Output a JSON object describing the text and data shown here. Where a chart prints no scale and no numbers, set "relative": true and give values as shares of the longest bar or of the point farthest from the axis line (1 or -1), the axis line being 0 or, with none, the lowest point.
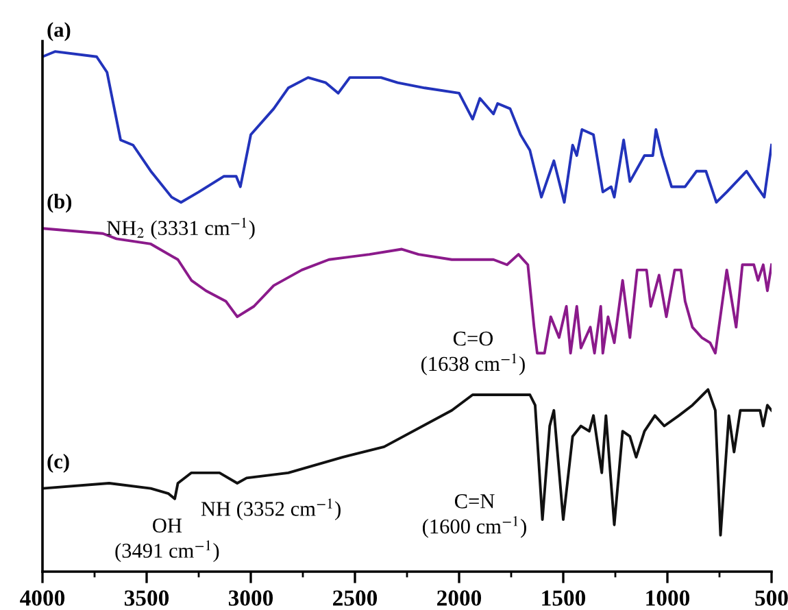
{
  "chart_data": {
    "type": "line",
    "relative": true,
    "xlim": [
      4000,
      500
    ],
    "xticks": [
      4000,
      {
        "value": 3750,
        "label": null
      },
      3500,
      {
        "value": 3250,
        "label": null
      },
      3000,
      {
        "value": 2750,
        "label": null
      },
      2500,
      {
        "value": 2250,
        "label": null
      },
      2000,
      {
        "value": 1750,
        "label": null
      },
      1500,
      {
        "value": 1250,
        "label": null
      },
      1000,
      {
        "value": 750,
        "label": null
      },
      500
    ],
    "tick_labels": "x",
    "grid": false,
    "legend": false,
    "marker": "none",
    "line_style": "solid",
    "series": [
      {
        "name": "(a)",
        "color": "#2233bb",
        "x": [
          4000,
          3940,
          3740,
          3690,
          3625,
          3565,
          3480,
          3380,
          3335,
          3250,
          3130,
          3070,
          3050,
          3000,
          2890,
          2820,
          2725,
          2640,
          2580,
          2525,
          2375,
          2295,
          2165,
          2000,
          1935,
          1900,
          1835,
          1815,
          1755,
          1705,
          1660,
          1605,
          1545,
          1495,
          1455,
          1435,
          1410,
          1355,
          1310,
          1270,
          1255,
          1210,
          1180,
          1110,
          1070,
          1055,
          1025,
          980,
          915,
          860,
          815,
          765,
          715,
          620,
          570,
          535,
          500
        ],
        "values": [
          0.99,
          1.0,
          0.99,
          0.96,
          0.83,
          0.82,
          0.77,
          0.72,
          0.71,
          0.73,
          0.76,
          0.76,
          0.74,
          0.84,
          0.89,
          0.93,
          0.95,
          0.94,
          0.92,
          0.95,
          0.95,
          0.94,
          0.93,
          0.92,
          0.87,
          0.91,
          0.88,
          0.9,
          0.89,
          0.84,
          0.81,
          0.72,
          0.79,
          0.71,
          0.82,
          0.8,
          0.85,
          0.84,
          0.73,
          0.74,
          0.72,
          0.83,
          0.75,
          0.8,
          0.8,
          0.85,
          0.8,
          0.74,
          0.74,
          0.77,
          0.77,
          0.71,
          0.73,
          0.77,
          0.74,
          0.72,
          0.82
        ]
      },
      {
        "name": "(b)",
        "color": "#8b1a8b",
        "x": [
          4000,
          3710,
          3645,
          3480,
          3350,
          3285,
          3215,
          3120,
          3065,
          2985,
          2890,
          2755,
          2625,
          2430,
          2275,
          2195,
          2035,
          1835,
          1770,
          1715,
          1670,
          1640,
          1625,
          1590,
          1560,
          1520,
          1485,
          1465,
          1435,
          1415,
          1370,
          1350,
          1320,
          1310,
          1285,
          1255,
          1215,
          1180,
          1145,
          1100,
          1080,
          1040,
          1005,
          965,
          935,
          915,
          880,
          835,
          795,
          770,
          715,
          670,
          640,
          585,
          565,
          540,
          520,
          500
        ],
        "values": [
          0.66,
          0.65,
          0.64,
          0.63,
          0.6,
          0.56,
          0.54,
          0.52,
          0.49,
          0.51,
          0.55,
          0.58,
          0.6,
          0.61,
          0.62,
          0.61,
          0.6,
          0.6,
          0.59,
          0.61,
          0.59,
          0.47,
          0.42,
          0.42,
          0.49,
          0.45,
          0.51,
          0.42,
          0.51,
          0.43,
          0.47,
          0.42,
          0.51,
          0.42,
          0.49,
          0.44,
          0.56,
          0.45,
          0.58,
          0.58,
          0.51,
          0.57,
          0.49,
          0.58,
          0.58,
          0.52,
          0.47,
          0.45,
          0.44,
          0.42,
          0.58,
          0.47,
          0.59,
          0.59,
          0.56,
          0.59,
          0.54,
          0.59
        ]
      },
      {
        "name": "(c)",
        "color": "#111111",
        "x": [
          4000,
          3680,
          3480,
          3395,
          3365,
          3350,
          3285,
          3150,
          3065,
          3020,
          2820,
          2560,
          2360,
          2035,
          1935,
          1755,
          1660,
          1635,
          1600,
          1565,
          1545,
          1500,
          1455,
          1415,
          1375,
          1355,
          1315,
          1295,
          1255,
          1215,
          1180,
          1150,
          1110,
          1060,
          1015,
          945,
          880,
          830,
          805,
          770,
          745,
          705,
          680,
          650,
          585,
          555,
          540,
          520,
          500
        ],
        "values": [
          0.16,
          0.17,
          0.16,
          0.15,
          0.14,
          0.17,
          0.19,
          0.19,
          0.17,
          0.18,
          0.19,
          0.22,
          0.24,
          0.31,
          0.34,
          0.34,
          0.34,
          0.32,
          0.1,
          0.28,
          0.31,
          0.1,
          0.26,
          0.28,
          0.27,
          0.3,
          0.19,
          0.3,
          0.09,
          0.27,
          0.26,
          0.22,
          0.27,
          0.3,
          0.28,
          0.3,
          0.32,
          0.34,
          0.35,
          0.31,
          0.07,
          0.3,
          0.23,
          0.31,
          0.31,
          0.31,
          0.28,
          0.32,
          0.31
        ]
      }
    ],
    "annotations": [
      {
        "text": "NH$_{2}$ (3331 cm$^{−1}$)",
        "x": 3335,
        "y": 0.71
      },
      {
        "text": "C=O\n(1638 cm$^{−1}$)",
        "x": 1625,
        "y": 0.42
      },
      {
        "text": "OH\n(3491 cm$^{−1}$)",
        "x": 3365,
        "y": 0.14
      },
      {
        "text": "NH (3352 cm$^{−1}$)",
        "x": 3350,
        "y": 0.17
      },
      {
        "text": "C=N\n(1600 cm$^{−1}$)",
        "x": 1600,
        "y": 0.1
      }
    ]
  }
}
